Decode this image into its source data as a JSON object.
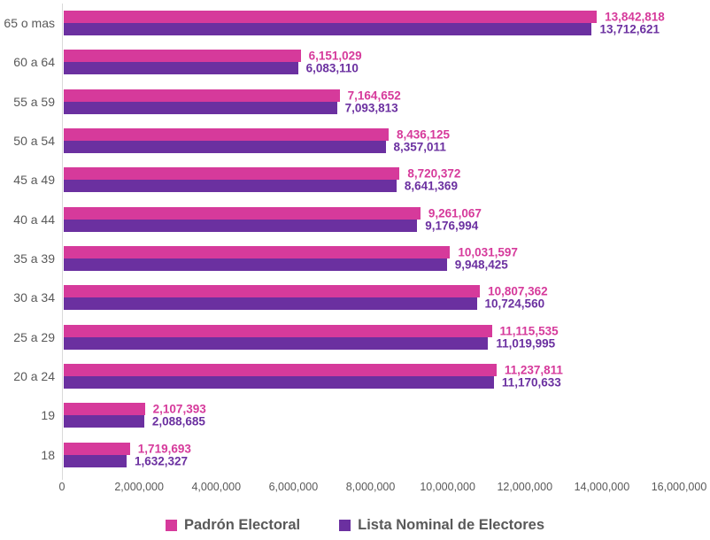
{
  "chart_data": {
    "type": "bar",
    "orientation": "horizontal",
    "title": "",
    "xlabel": "",
    "ylabel": "",
    "categories": [
      "65 o mas",
      "60 a 64",
      "55 a 59",
      "50 a 54",
      "45 a 49",
      "40 a 44",
      "35 a 39",
      "30 a 34",
      "25 a 29",
      "20 a 24",
      "19",
      "18"
    ],
    "series": [
      {
        "name": "Padrón Electoral",
        "color": "#d63a9b",
        "values": [
          13842818,
          6151029,
          7164652,
          8436125,
          8720372,
          9261067,
          10031597,
          10807362,
          11115535,
          11237811,
          2107393,
          1719693
        ],
        "labels": [
          "13,842,818",
          "6,151,029",
          "7,164,652",
          "8,436,125",
          "8,720,372",
          "9,261,067",
          "10,031,597",
          "10,807,362",
          "11,115,535",
          "11,237,811",
          "2,107,393",
          "1,719,693"
        ]
      },
      {
        "name": "Lista Nominal de Electores",
        "color": "#6b30a0",
        "values": [
          13712621,
          6083110,
          7093813,
          8357011,
          8641369,
          9176994,
          9948425,
          10724560,
          11019995,
          11170633,
          2088685,
          1632327
        ],
        "labels": [
          "13,712,621",
          "6,083,110",
          "7,093,813",
          "8,357,011",
          "8,641,369",
          "9,176,994",
          "9,948,425",
          "10,724,560",
          "11,019,995",
          "11,170,633",
          "2,088,685",
          "1,632,327"
        ]
      }
    ],
    "xlim": [
      0,
      16000000
    ],
    "x_ticks": [
      "0",
      "2,000,000",
      "4,000,000",
      "6,000,000",
      "8,000,000",
      "10,000,000",
      "12,000,000",
      "14,000,000",
      "16,000,000"
    ],
    "grid": false,
    "legend_position": "bottom",
    "axis_line_color": "#d9d9d9",
    "text_color": "#595959"
  }
}
